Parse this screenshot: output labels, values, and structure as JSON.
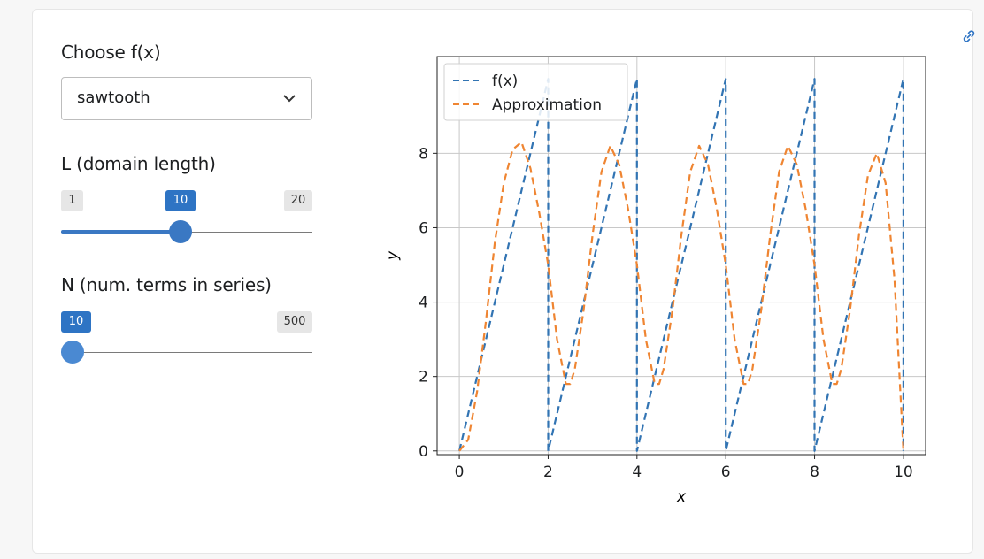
{
  "controls": {
    "function_label": "Choose f(x)",
    "function_value": "sawtooth",
    "L_label": "L (domain length)",
    "L_min": "1",
    "L_value": "10",
    "L_max": "20",
    "L_fraction": 0.4737,
    "N_label": "N (num. terms in series)",
    "N_min": "10",
    "N_max": "500",
    "N_fraction": 0.0
  },
  "chart_data": {
    "type": "line",
    "xlabel": "x",
    "ylabel": "y",
    "xlim": [
      -0.5,
      10.5
    ],
    "ylim": [
      -0.1,
      10.6
    ],
    "xticks": [
      0,
      2,
      4,
      6,
      8,
      10
    ],
    "yticks": [
      0,
      2,
      4,
      6,
      8
    ],
    "grid": true,
    "legend_position": "top-left",
    "series": [
      {
        "name": "f(x)",
        "color": "#3274b3",
        "style": "dashed",
        "x": [
          0,
          2,
          2,
          4,
          4,
          6,
          6,
          8,
          8,
          10,
          10
        ],
        "y": [
          0,
          10,
          0,
          10,
          0,
          10,
          0,
          10,
          0,
          10,
          0
        ]
      },
      {
        "name": "Approximation",
        "color": "#ef8532",
        "style": "dashed",
        "x": [
          0,
          0.2,
          0.4,
          0.6,
          0.8,
          1.0,
          1.2,
          1.4,
          1.6,
          1.8,
          2.0,
          2.2,
          2.4,
          2.5,
          2.6,
          2.8,
          3.0,
          3.2,
          3.4,
          3.6,
          3.8,
          4.0,
          4.2,
          4.4,
          4.5,
          4.6,
          4.8,
          5.0,
          5.2,
          5.4,
          5.6,
          5.8,
          6.0,
          6.2,
          6.4,
          6.5,
          6.6,
          6.8,
          7.0,
          7.2,
          7.4,
          7.6,
          7.8,
          8.0,
          8.2,
          8.4,
          8.5,
          8.6,
          8.8,
          9.0,
          9.2,
          9.4,
          9.6,
          9.8,
          10.0
        ],
        "y": [
          0.0,
          0.3,
          1.6,
          3.5,
          5.6,
          7.2,
          8.1,
          8.3,
          7.6,
          6.4,
          5.0,
          3.0,
          1.8,
          1.8,
          2.2,
          3.8,
          5.8,
          7.5,
          8.2,
          7.7,
          6.5,
          5.0,
          3.0,
          1.8,
          1.8,
          2.2,
          3.8,
          5.8,
          7.5,
          8.2,
          7.7,
          6.5,
          5.0,
          3.0,
          1.8,
          1.8,
          2.2,
          3.8,
          5.8,
          7.5,
          8.2,
          7.7,
          6.5,
          5.0,
          3.0,
          1.8,
          1.8,
          2.2,
          3.8,
          5.8,
          7.4,
          8.0,
          7.2,
          4.6,
          0.0
        ]
      }
    ]
  }
}
